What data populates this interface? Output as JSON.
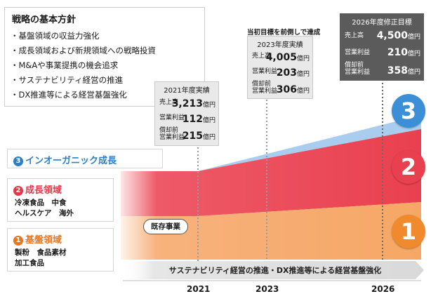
{
  "strategy": {
    "title": "戦略の基本方針",
    "items": [
      "基盤領域の収益力強化",
      "成長領域および新規領域への戦略投資",
      "M&Aや事業提携の機会追求",
      "サステナビリティ経営の推進",
      "DX推進等による経営基盤強化"
    ]
  },
  "inorganic": {
    "badge": "3",
    "label": "インオーガニック成長",
    "color": "#2b7fc2"
  },
  "growth": {
    "badge": "2",
    "label": "成長領域",
    "line1": "冷凍食品　中食",
    "line2": "ヘルスケア　海外",
    "color": "#e03a48"
  },
  "base": {
    "badge": "1",
    "label": "基盤領域",
    "line1": "製粉　食品素材",
    "line2": "加工食品",
    "color": "#e87722"
  },
  "results": {
    "r2021": {
      "title": "2021年度実績",
      "sales_label": "売上高",
      "sales": "3,213",
      "op_label": "営業利益",
      "op": "112",
      "ebitda_label1": "償却前",
      "ebitda_label2": "営業利益",
      "ebitda": "215",
      "unit": "億円"
    },
    "r2023": {
      "above": "当初目標を前倒しで達成",
      "title": "2023年度実績",
      "sales_label": "売上高",
      "sales": "4,005",
      "op_label": "営業利益",
      "op": "203",
      "ebitda_label1": "償却前",
      "ebitda_label2": "営業利益",
      "ebitda": "306",
      "unit": "億円"
    },
    "r2026": {
      "title": "2026年度修正目標",
      "sales_label": "売上高",
      "sales": "4,500",
      "op_label": "営業利益",
      "op": "210",
      "ebitda_label1": "償却前",
      "ebitda_label2": "営業利益",
      "ebitda": "358",
      "unit": "億円"
    }
  },
  "existing": "既存事業",
  "arrow_text": "サステナビリティ経営の推進・DX推進等による経営基盤強化",
  "years": [
    "2021",
    "2023",
    "2026"
  ],
  "circles": [
    "1",
    "2",
    "3"
  ],
  "colors": {
    "base_area": "#f7b27d",
    "growth_area": "#ee5a68",
    "inorganic_area": "#a9cdee",
    "blue": "#3b8fd6",
    "red": "#e8404f",
    "orange": "#f08a2c",
    "dark_box": "#5b5b5b"
  }
}
